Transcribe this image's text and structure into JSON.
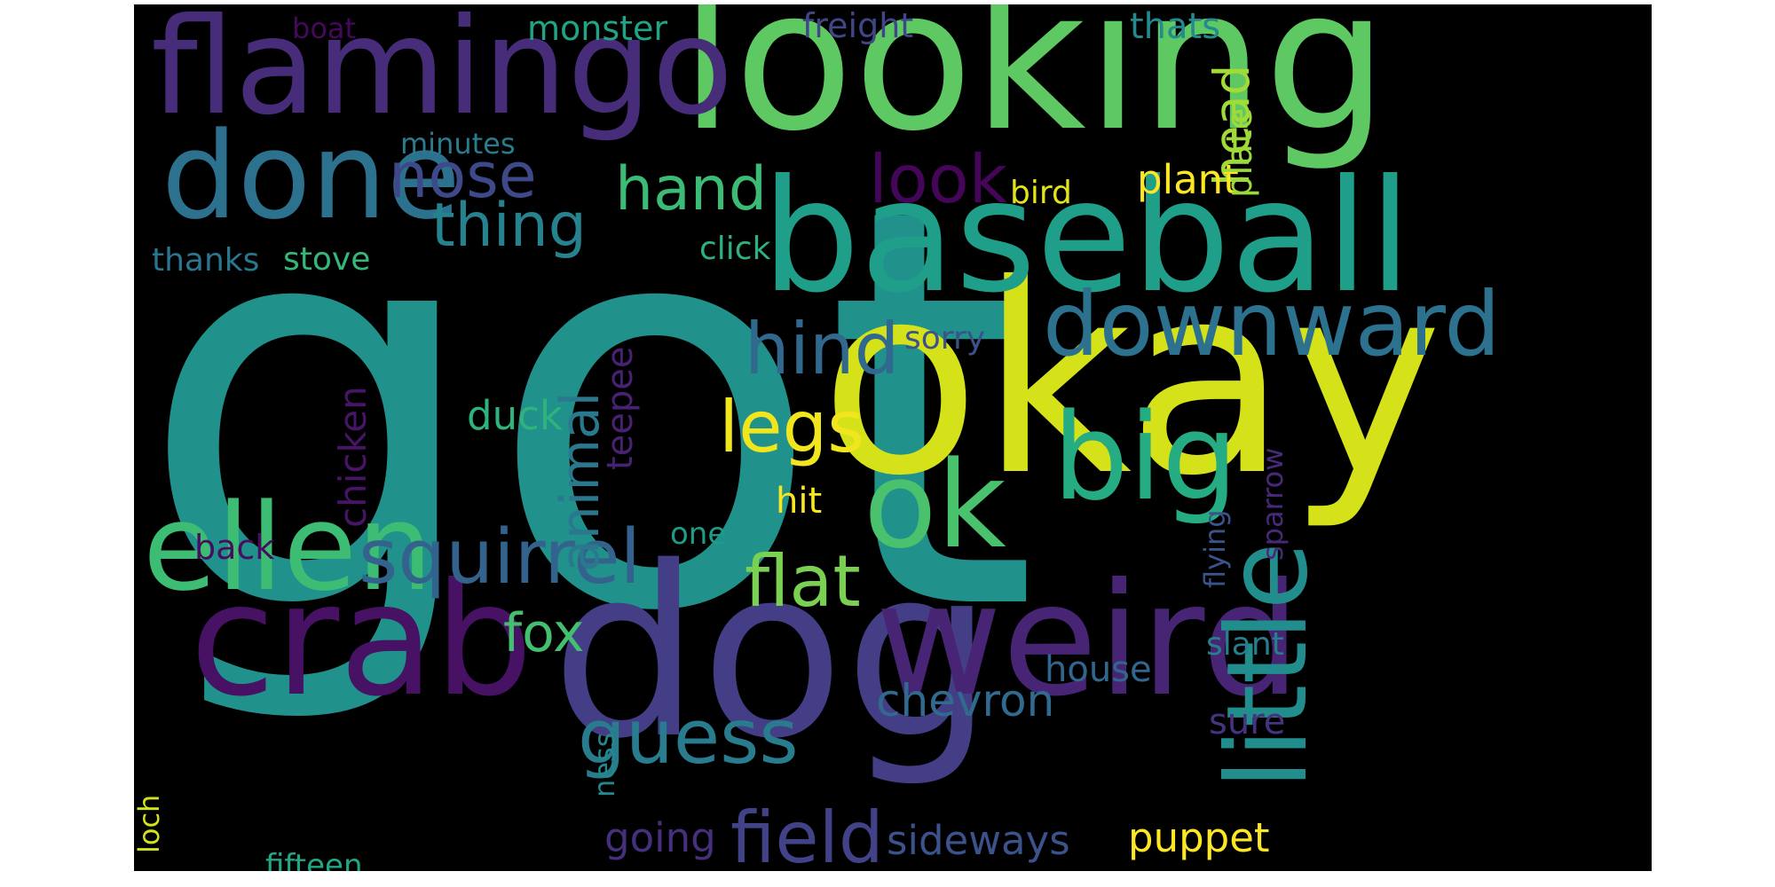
{
  "palette": {
    "dark_purple": "#440154",
    "purple": "#472b7a",
    "indigo": "#3b518b",
    "blue": "#2c718e",
    "teal": "#21908d",
    "sea_green": "#27ad81",
    "green": "#5cc863",
    "lime": "#aadc32",
    "yellow": "#d8e219",
    "bright_yellow": "#fde725"
  },
  "words": [
    {
      "text": "got",
      "color": "#21918c"
    },
    {
      "text": "okay",
      "color": "#d5e21a"
    },
    {
      "text": "dog",
      "color": "#433e85"
    },
    {
      "text": "looking",
      "color": "#5ec962"
    },
    {
      "text": "baseball",
      "color": "#1f9e89"
    },
    {
      "text": "weird",
      "color": "#482475"
    },
    {
      "text": "crab",
      "color": "#471164"
    },
    {
      "text": "flamingo",
      "color": "#472c7a"
    },
    {
      "text": "done",
      "color": "#2c718e"
    },
    {
      "text": "ellen",
      "color": "#3dbc74"
    },
    {
      "text": "ok",
      "color": "#4ac16d"
    },
    {
      "text": "big",
      "color": "#25ac82"
    },
    {
      "text": "downward",
      "color": "#2c728e"
    },
    {
      "text": "little",
      "color": "#228d8d"
    },
    {
      "text": "squirrel",
      "color": "#33638d"
    },
    {
      "text": "guess",
      "color": "#287c8e"
    },
    {
      "text": "field",
      "color": "#414287"
    },
    {
      "text": "flat",
      "color": "#7ad151"
    },
    {
      "text": "legs",
      "color": "#f1e51d"
    },
    {
      "text": "hind",
      "color": "#31688e"
    },
    {
      "text": "nose",
      "color": "#3e4989"
    },
    {
      "text": "look",
      "color": "#450559"
    },
    {
      "text": "hand",
      "color": "#3bbb75"
    },
    {
      "text": "thing",
      "color": "#26828e"
    },
    {
      "text": "head",
      "color": "#a2da37"
    },
    {
      "text": "animal",
      "color": "#2a788e"
    },
    {
      "text": "fox",
      "color": "#44bf70"
    },
    {
      "text": "chevron",
      "color": "#306a8e"
    },
    {
      "text": "chicken",
      "color": "#481467"
    },
    {
      "text": "teepee",
      "color": "#482173"
    },
    {
      "text": "plant",
      "color": "#fde725"
    },
    {
      "text": "plate",
      "color": "#9bd93c"
    },
    {
      "text": "duck",
      "color": "#2eb37c"
    },
    {
      "text": "puppet",
      "color": "#fde725"
    },
    {
      "text": "sideways",
      "color": "#3b528b"
    },
    {
      "text": "going",
      "color": "#46307e"
    },
    {
      "text": "house",
      "color": "#31678e"
    },
    {
      "text": "thats",
      "color": "#238a8d"
    },
    {
      "text": "freight",
      "color": "#404688"
    },
    {
      "text": "monster",
      "color": "#20a486"
    },
    {
      "text": "minutes",
      "color": "#297b8e"
    },
    {
      "text": "bird",
      "color": "#e2e418"
    },
    {
      "text": "click",
      "color": "#2db27d"
    },
    {
      "text": "stove",
      "color": "#35b779"
    },
    {
      "text": "thanks",
      "color": "#2a768e"
    },
    {
      "text": "sorry",
      "color": "#3b528b"
    },
    {
      "text": "hit",
      "color": "#f8e621"
    },
    {
      "text": "back",
      "color": "#470d60"
    },
    {
      "text": "one",
      "color": "#1e9c89"
    },
    {
      "text": "sure",
      "color": "#46337f"
    },
    {
      "text": "slant",
      "color": "#277f8e"
    },
    {
      "text": "flying",
      "color": "#3a538b"
    },
    {
      "text": "sparrow",
      "color": "#482979"
    },
    {
      "text": "ness",
      "color": "#23888e"
    },
    {
      "text": "loch",
      "color": "#d2e21b"
    },
    {
      "text": "fifteen",
      "color": "#22a785"
    },
    {
      "text": "boat",
      "color": "#46085c"
    }
  ]
}
